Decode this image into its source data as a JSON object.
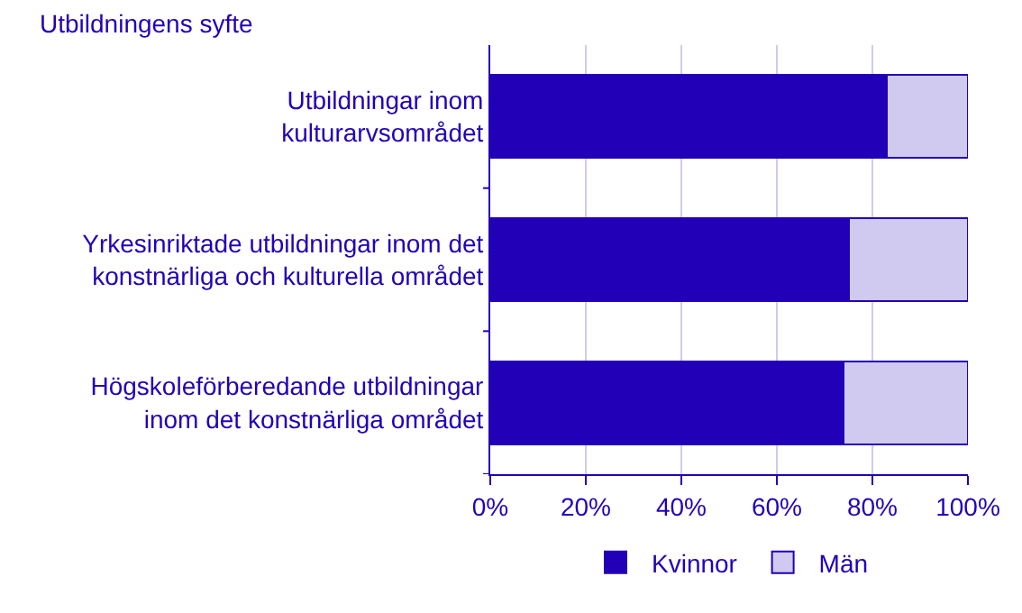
{
  "chart_data": {
    "type": "bar",
    "orientation": "horizontal",
    "stacked": true,
    "ylabel": "Utbildningens syfte",
    "categories": [
      "Utbildningar inom\nkulturarvsområdet",
      "Yrkesinriktade utbildningar inom det\nkonstnärliga och kulturella området",
      "Högskoleförberedande utbildningar\ninom det konstnärliga området"
    ],
    "series": [
      {
        "name": "Kvinnor",
        "color": "#2200b8",
        "values": [
          83,
          75,
          74
        ]
      },
      {
        "name": "Män",
        "color": "#d0caf0",
        "values": [
          17,
          25,
          26
        ]
      }
    ],
    "xlim": [
      0,
      100
    ],
    "xticks": [
      {
        "value": 0,
        "label": "0%"
      },
      {
        "value": 20,
        "label": "20%"
      },
      {
        "value": 40,
        "label": "40%"
      },
      {
        "value": 60,
        "label": "60%"
      },
      {
        "value": 80,
        "label": "80%"
      },
      {
        "value": 100,
        "label": "100%"
      }
    ],
    "grid": "x",
    "legend": "bottom"
  }
}
